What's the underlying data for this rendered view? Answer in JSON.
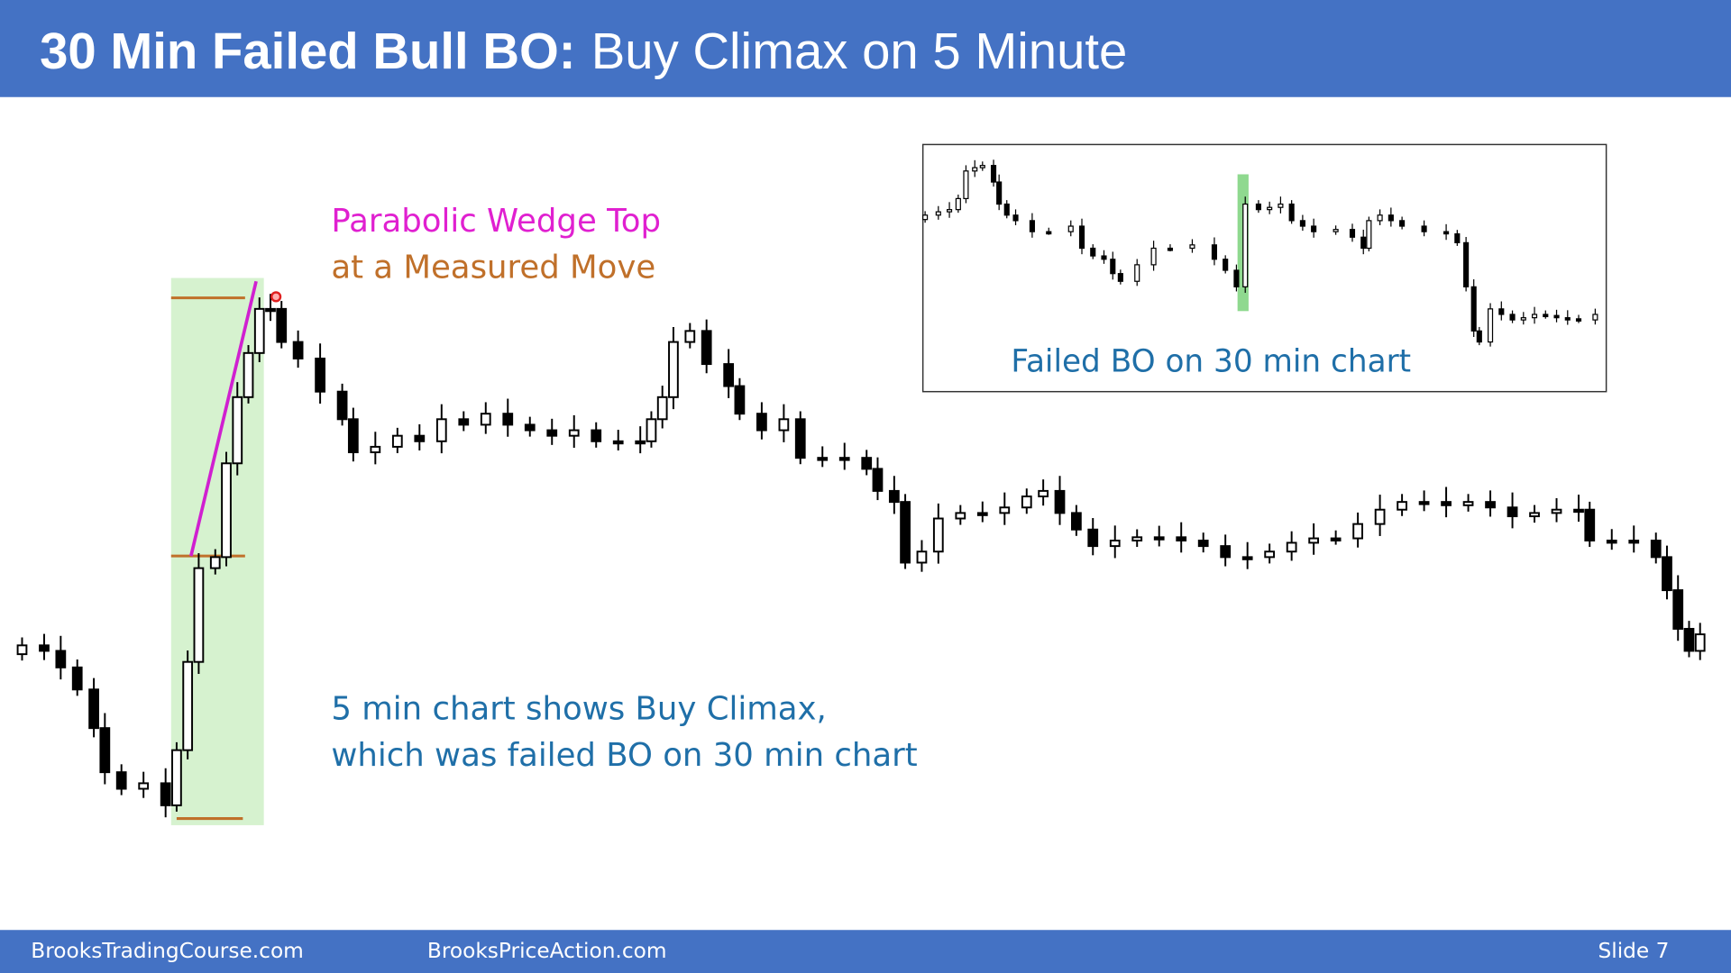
{
  "header": {
    "title_bold": "30 Min Failed Bull BO:",
    "title_rest": "Buy Climax on 5 Minute"
  },
  "annotations": {
    "wedge": "Parabolic Wedge Top",
    "measured_move": "at a Measured Move",
    "note_line1": "5 min chart shows Buy Climax,",
    "note_line2": "which was failed BO on 30 min chart"
  },
  "inset": {
    "label": "Failed BO on 30 min chart"
  },
  "footer": {
    "left": "BrooksTradingCourse.com",
    "center": "BrooksPriceAction.com",
    "slide": "Slide 7"
  }
}
